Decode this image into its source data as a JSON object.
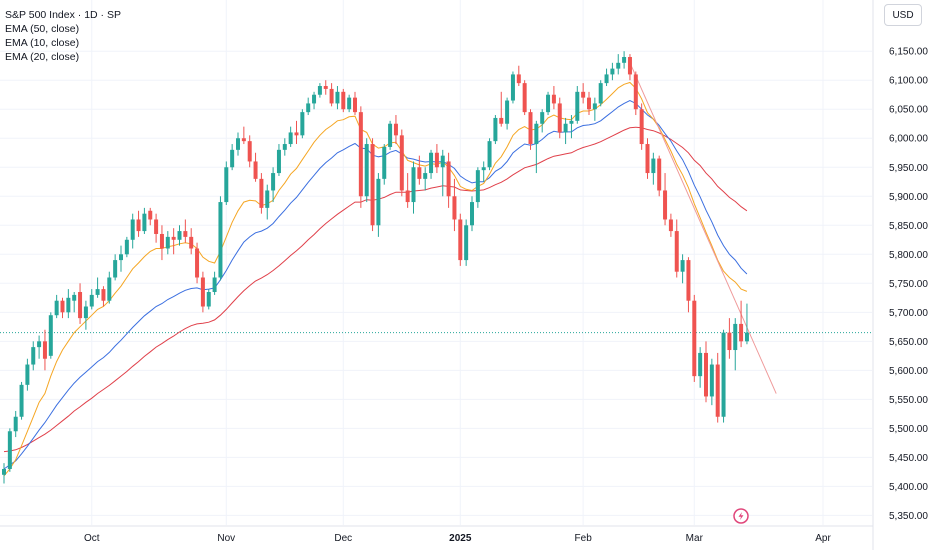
{
  "legend": {
    "title": "S&P 500 Index · 1D · SP",
    "ema50": "EMA (50, close)",
    "ema10": "EMA (10, close)",
    "ema20": "EMA (20, close)"
  },
  "currency": "USD",
  "colors": {
    "up": "#26a69a",
    "down": "#ef5350",
    "ema10": "#f5a623",
    "ema20": "#3b6fe0",
    "ema50": "#e0404a",
    "last_price_line": "#26a69a",
    "grid": "#f0f3fa"
  },
  "chart_data": {
    "type": "candlestick",
    "ylim": [
      5330,
      6190
    ],
    "y_ticks": [
      6150,
      6100,
      6050,
      6000,
      5950,
      5900,
      5850,
      5800,
      5750,
      5700,
      5650,
      5600,
      5550,
      5500,
      5450,
      5400,
      5350
    ],
    "y_tick_labels": [
      "6,150.00",
      "6,100.00",
      "6,050.00",
      "6,000.00",
      "5,950.00",
      "5,900.00",
      "5,850.00",
      "5,800.00",
      "5,750.00",
      "5,700.00",
      "5,650.00",
      "5,600.00",
      "5,550.00",
      "5,500.00",
      "5,450.00",
      "5,400.00",
      "5,350.00"
    ],
    "x_labels": [
      {
        "label": "Oct",
        "bar": 15,
        "bold": false
      },
      {
        "label": "Nov",
        "bar": 38,
        "bold": false
      },
      {
        "label": "Dec",
        "bar": 58,
        "bold": false
      },
      {
        "label": "2025",
        "bar": 78,
        "bold": true
      },
      {
        "label": "Feb",
        "bar": 99,
        "bold": false
      },
      {
        "label": "Mar",
        "bar": 118,
        "bold": false
      },
      {
        "label": "Apr",
        "bar": 140,
        "bold": false
      }
    ],
    "candles": [
      [
        5420,
        5440,
        5405,
        5430
      ],
      [
        5430,
        5500,
        5425,
        5495
      ],
      [
        5495,
        5530,
        5485,
        5520
      ],
      [
        5520,
        5580,
        5515,
        5575
      ],
      [
        5575,
        5620,
        5565,
        5610
      ],
      [
        5610,
        5650,
        5600,
        5640
      ],
      [
        5640,
        5660,
        5620,
        5650
      ],
      [
        5650,
        5670,
        5600,
        5620
      ],
      [
        5625,
        5700,
        5620,
        5695
      ],
      [
        5695,
        5730,
        5690,
        5720
      ],
      [
        5720,
        5725,
        5690,
        5700
      ],
      [
        5700,
        5740,
        5690,
        5725
      ],
      [
        5720,
        5735,
        5700,
        5730
      ],
      [
        5735,
        5750,
        5680,
        5690
      ],
      [
        5690,
        5720,
        5670,
        5710
      ],
      [
        5710,
        5740,
        5705,
        5730
      ],
      [
        5730,
        5760,
        5725,
        5740
      ],
      [
        5740,
        5745,
        5710,
        5720
      ],
      [
        5720,
        5770,
        5715,
        5760
      ],
      [
        5760,
        5800,
        5755,
        5790
      ],
      [
        5790,
        5815,
        5770,
        5800
      ],
      [
        5800,
        5830,
        5795,
        5825
      ],
      [
        5825,
        5870,
        5810,
        5860
      ],
      [
        5860,
        5875,
        5830,
        5840
      ],
      [
        5840,
        5880,
        5835,
        5870
      ],
      [
        5875,
        5880,
        5850,
        5860
      ],
      [
        5860,
        5870,
        5820,
        5835
      ],
      [
        5835,
        5850,
        5790,
        5810
      ],
      [
        5810,
        5840,
        5800,
        5830
      ],
      [
        5830,
        5845,
        5800,
        5825
      ],
      [
        5825,
        5850,
        5815,
        5840
      ],
      [
        5840,
        5860,
        5820,
        5830
      ],
      [
        5830,
        5845,
        5800,
        5810
      ],
      [
        5810,
        5820,
        5750,
        5760
      ],
      [
        5760,
        5770,
        5700,
        5710
      ],
      [
        5710,
        5740,
        5705,
        5735
      ],
      [
        5735,
        5770,
        5730,
        5760
      ],
      [
        5760,
        5900,
        5755,
        5890
      ],
      [
        5890,
        5960,
        5885,
        5950
      ],
      [
        5950,
        5990,
        5945,
        5980
      ],
      [
        5980,
        6010,
        5970,
        6000
      ],
      [
        6000,
        6020,
        5990,
        5995
      ],
      [
        5995,
        6005,
        5950,
        5960
      ],
      [
        5960,
        5975,
        5925,
        5930
      ],
      [
        5930,
        5940,
        5870,
        5880
      ],
      [
        5880,
        5920,
        5860,
        5910
      ],
      [
        5910,
        5950,
        5890,
        5940
      ],
      [
        5940,
        5990,
        5935,
        5980
      ],
      [
        5980,
        6000,
        5970,
        5990
      ],
      [
        5990,
        6020,
        5985,
        6010
      ],
      [
        6010,
        6030,
        5990,
        6005
      ],
      [
        6005,
        6050,
        6000,
        6045
      ],
      [
        6045,
        6070,
        6040,
        6060
      ],
      [
        6060,
        6080,
        6050,
        6075
      ],
      [
        6075,
        6095,
        6070,
        6090
      ],
      [
        6090,
        6100,
        6075,
        6085
      ],
      [
        6085,
        6095,
        6055,
        6060
      ],
      [
        6060,
        6090,
        6050,
        6080
      ],
      [
        6080,
        6085,
        6045,
        6050
      ],
      [
        6050,
        6075,
        6045,
        6070
      ],
      [
        6070,
        6080,
        6040,
        6045
      ],
      [
        6045,
        6055,
        5880,
        5900
      ],
      [
        5900,
        6000,
        5890,
        5990
      ],
      [
        5990,
        6000,
        5840,
        5850
      ],
      [
        5850,
        5940,
        5830,
        5930
      ],
      [
        5930,
        5990,
        5920,
        5985
      ],
      [
        5985,
        6030,
        5980,
        6025
      ],
      [
        6025,
        6040,
        5990,
        6005
      ],
      [
        6005,
        6015,
        5900,
        5910
      ],
      [
        5910,
        5940,
        5880,
        5890
      ],
      [
        5890,
        5960,
        5870,
        5950
      ],
      [
        5950,
        5970,
        5920,
        5930
      ],
      [
        5930,
        5950,
        5910,
        5940
      ],
      [
        5940,
        5980,
        5930,
        5975
      ],
      [
        5975,
        5990,
        5940,
        5950
      ],
      [
        5950,
        5980,
        5900,
        5970
      ],
      [
        5960,
        5975,
        5880,
        5900
      ],
      [
        5900,
        5930,
        5840,
        5860
      ],
      [
        5860,
        5870,
        5780,
        5790
      ],
      [
        5790,
        5860,
        5780,
        5850
      ],
      [
        5850,
        5900,
        5840,
        5890
      ],
      [
        5890,
        5950,
        5880,
        5945
      ],
      [
        5945,
        5960,
        5925,
        5950
      ],
      [
        5950,
        6000,
        5945,
        5995
      ],
      [
        5995,
        6040,
        5990,
        6035
      ],
      [
        6035,
        6080,
        6020,
        6025
      ],
      [
        6025,
        6070,
        6015,
        6065
      ],
      [
        6065,
        6115,
        6060,
        6110
      ],
      [
        6110,
        6125,
        6090,
        6095
      ],
      [
        6095,
        6100,
        6040,
        6045
      ],
      [
        6045,
        6050,
        5980,
        5990
      ],
      [
        5990,
        6030,
        5940,
        6025
      ],
      [
        6025,
        6050,
        6010,
        6045
      ],
      [
        6045,
        6080,
        6040,
        6075
      ],
      [
        6075,
        6090,
        6050,
        6060
      ],
      [
        6060,
        6070,
        6000,
        6010
      ],
      [
        6010,
        6035,
        5990,
        6025
      ],
      [
        6025,
        6040,
        6000,
        6030
      ],
      [
        6030,
        6090,
        6025,
        6080
      ],
      [
        6080,
        6095,
        6060,
        6070
      ],
      [
        6070,
        6080,
        6040,
        6050
      ],
      [
        6050,
        6070,
        6030,
        6060
      ],
      [
        6060,
        6100,
        6055,
        6095
      ],
      [
        6095,
        6120,
        6090,
        6110
      ],
      [
        6110,
        6130,
        6100,
        6120
      ],
      [
        6120,
        6145,
        6110,
        6130
      ],
      [
        6130,
        6150,
        6120,
        6140
      ],
      [
        6140,
        6145,
        6100,
        6110
      ],
      [
        6110,
        6115,
        6040,
        6050
      ],
      [
        6050,
        6060,
        5980,
        5990
      ],
      [
        5990,
        6000,
        5930,
        5940
      ],
      [
        5940,
        5975,
        5920,
        5965
      ],
      [
        5965,
        5970,
        5900,
        5910
      ],
      [
        5910,
        5940,
        5850,
        5860
      ],
      [
        5860,
        5870,
        5830,
        5840
      ],
      [
        5840,
        5860,
        5760,
        5770
      ],
      [
        5770,
        5800,
        5750,
        5790
      ],
      [
        5790,
        5795,
        5700,
        5720
      ],
      [
        5720,
        5730,
        5580,
        5590
      ],
      [
        5590,
        5640,
        5570,
        5630
      ],
      [
        5630,
        5650,
        5545,
        5555
      ],
      [
        5555,
        5620,
        5540,
        5610
      ],
      [
        5610,
        5630,
        5510,
        5520
      ],
      [
        5520,
        5670,
        5510,
        5665
      ],
      [
        5665,
        5690,
        5620,
        5635
      ],
      [
        5635,
        5690,
        5600,
        5680
      ],
      [
        5680,
        5720,
        5640,
        5650
      ],
      [
        5650,
        5715,
        5645,
        5665
      ]
    ],
    "ema10": [
      5418,
      5430,
      5446,
      5470,
      5495,
      5520,
      5545,
      5560,
      5590,
      5615,
      5635,
      5650,
      5665,
      5675,
      5685,
      5695,
      5705,
      5710,
      5720,
      5733,
      5745,
      5760,
      5775,
      5785,
      5796,
      5805,
      5810,
      5810,
      5813,
      5815,
      5818,
      5820,
      5818,
      5810,
      5795,
      5788,
      5785,
      5805,
      5830,
      5855,
      5875,
      5890,
      5893,
      5892,
      5884,
      5887,
      5893,
      5910,
      5923,
      5938,
      5948,
      5963,
      5978,
      5993,
      6005,
      6015,
      6022,
      6030,
      6032,
      6037,
      6038,
      6015,
      6010,
      5990,
      5983,
      5985,
      5992,
      5993,
      5978,
      5962,
      5958,
      5954,
      5952,
      5956,
      5955,
      5959,
      5950,
      5936,
      5917,
      5912,
      5910,
      5917,
      5922,
      5938,
      5957,
      5968,
      5985,
      6005,
      6015,
      6020,
      6014,
      6016,
      6023,
      6035,
      6040,
      6035,
      6033,
      6032,
      6043,
      6047,
      6047,
      6050,
      6058,
      6067,
      6077,
      6087,
      6093,
      6096,
      6086,
      6068,
      6044,
      6033,
      6018,
      5998,
      5978,
      5955,
      5937,
      5915,
      5887,
      5863,
      5838,
      5815,
      5790,
      5771,
      5760,
      5752,
      5740,
      5736
    ],
    "ema20": [
      5430,
      5437,
      5444,
      5456,
      5469,
      5483,
      5497,
      5510,
      5525,
      5540,
      5553,
      5566,
      5578,
      5588,
      5597,
      5606,
      5615,
      5622,
      5631,
      5642,
      5652,
      5663,
      5674,
      5684,
      5694,
      5702,
      5710,
      5715,
      5722,
      5727,
      5733,
      5738,
      5741,
      5742,
      5739,
      5740,
      5742,
      5756,
      5772,
      5790,
      5806,
      5821,
      5830,
      5837,
      5840,
      5845,
      5853,
      5865,
      5876,
      5888,
      5898,
      5911,
      5924,
      5936,
      5948,
      5958,
      5966,
      5975,
      5980,
      5986,
      5991,
      5983,
      5982,
      5971,
      5968,
      5970,
      5976,
      5979,
      5973,
      5966,
      5964,
      5961,
      5959,
      5960,
      5959,
      5960,
      5955,
      5948,
      5935,
      5928,
      5923,
      5925,
      5925,
      5932,
      5943,
      5949,
      5960,
      5975,
      5983,
      5990,
      5988,
      5991,
      5998,
      6007,
      6012,
      6010,
      6011,
      6011,
      6018,
      6022,
      6023,
      6025,
      6030,
      6038,
      6046,
      6054,
      6060,
      6065,
      6060,
      6050,
      6040,
      6033,
      6022,
      6008,
      5995,
      5978,
      5963,
      5943,
      5919,
      5899,
      5876,
      5856,
      5833,
      5815,
      5800,
      5790,
      5776,
      5766
    ],
    "ema50": [
      5460,
      5461,
      5463,
      5467,
      5472,
      5478,
      5484,
      5490,
      5497,
      5505,
      5513,
      5521,
      5530,
      5537,
      5545,
      5552,
      5560,
      5567,
      5574,
      5582,
      5590,
      5598,
      5607,
      5615,
      5624,
      5632,
      5640,
      5646,
      5653,
      5659,
      5666,
      5672,
      5677,
      5680,
      5681,
      5683,
      5687,
      5695,
      5705,
      5716,
      5727,
      5737,
      5746,
      5754,
      5759,
      5765,
      5772,
      5780,
      5789,
      5798,
      5806,
      5815,
      5825,
      5834,
      5844,
      5853,
      5861,
      5869,
      5876,
      5883,
      5890,
      5890,
      5894,
      5893,
      5895,
      5898,
      5903,
      5907,
      5907,
      5907,
      5909,
      5910,
      5911,
      5914,
      5916,
      5918,
      5917,
      5916,
      5911,
      5910,
      5909,
      5910,
      5911,
      5915,
      5920,
      5924,
      5930,
      5937,
      5943,
      5949,
      5952,
      5955,
      5960,
      5965,
      5969,
      5971,
      5973,
      5975,
      5980,
      5984,
      5987,
      5990,
      5994,
      5999,
      6004,
      6009,
      6014,
      6018,
      6019,
      6018,
      6015,
      6013,
      6009,
      6004,
      5998,
      5991,
      5984,
      5975,
      5962,
      5953,
      5940,
      5930,
      5917,
      5908,
      5898,
      5891,
      5882,
      5875
    ]
  },
  "last_price": 5665
}
